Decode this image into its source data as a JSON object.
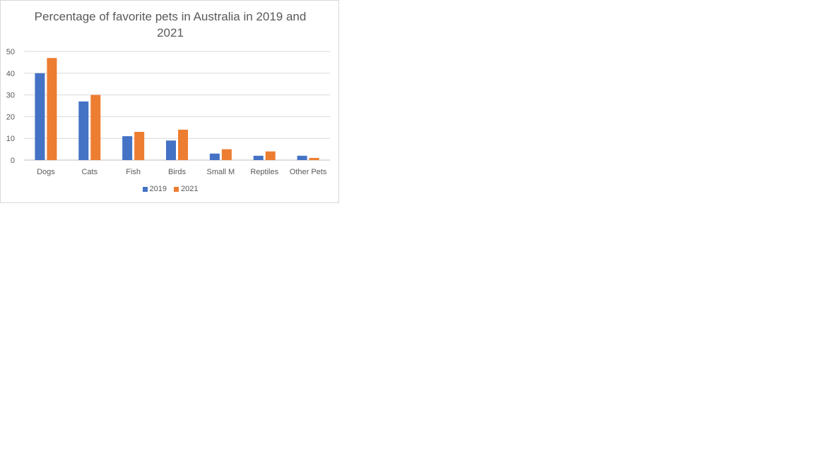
{
  "chart_data": {
    "type": "bar",
    "title": "Percentage of favorite pets in Australia in 2019 and 2021",
    "categories": [
      "Dogs",
      "Cats",
      "Fish",
      "Birds",
      "Small M",
      "Reptiles",
      "Other Pets"
    ],
    "series": [
      {
        "name": "2019",
        "color": "#4472c4",
        "values": [
          40,
          27,
          11,
          9,
          3,
          2,
          2
        ]
      },
      {
        "name": "2021",
        "color": "#ed7d31",
        "values": [
          47,
          30,
          13,
          14,
          5,
          4,
          1
        ]
      }
    ],
    "ylim": [
      0,
      50
    ],
    "yticks": [
      0,
      10,
      20,
      30,
      40,
      50
    ],
    "grid": true,
    "legend_position": "bottom"
  }
}
